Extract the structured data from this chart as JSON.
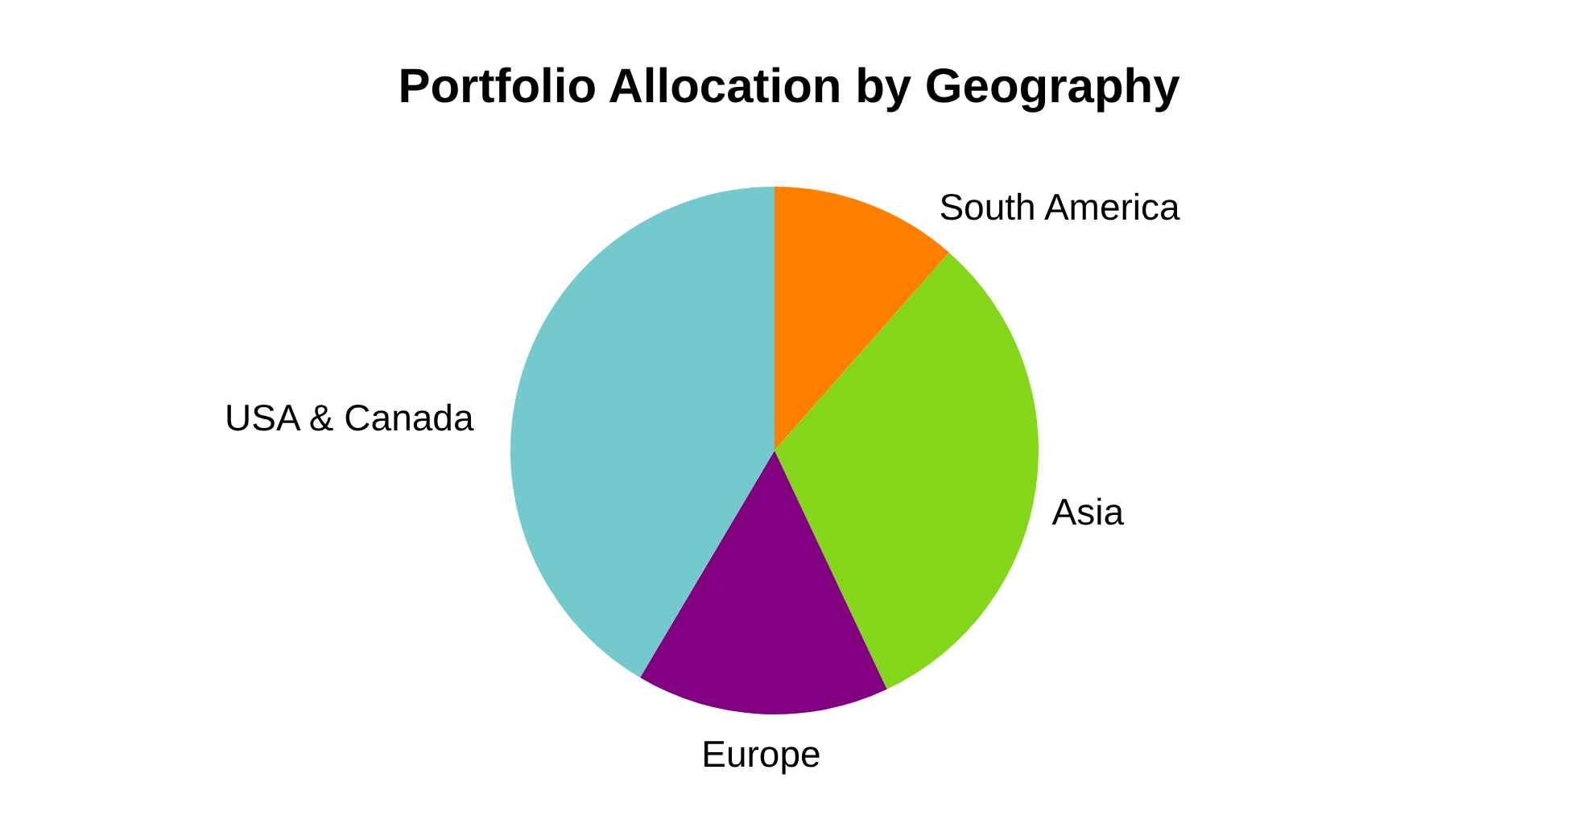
{
  "chart_data": {
    "type": "pie",
    "title": "Portfolio Allocation by Geography",
    "categories": [
      "South America",
      "Asia",
      "Europe",
      "USA & Canada"
    ],
    "values": [
      11.5,
      31.5,
      15.5,
      41.5
    ],
    "colors": [
      "#ff8000",
      "#83d61a",
      "#800080",
      "#73c9cc"
    ]
  }
}
